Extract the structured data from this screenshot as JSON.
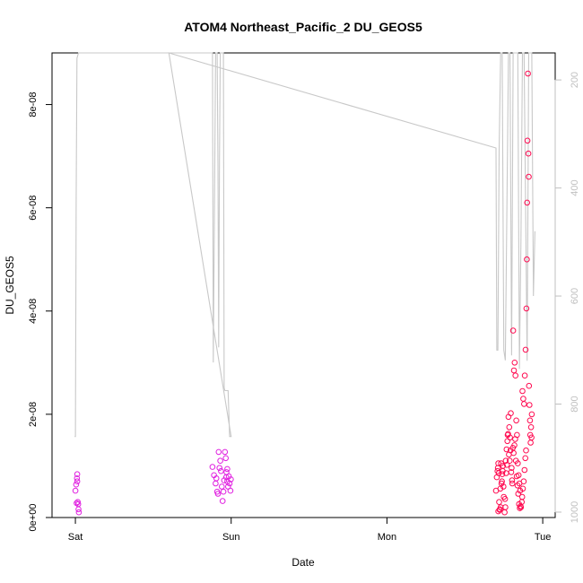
{
  "chart_data": {
    "type": "scatter",
    "title": "ATOM4 Northeast_Pacific_2 DU_GEOS5",
    "xlabel": "Date",
    "ylabel": "DU_GEOS5",
    "x_ticks": [
      {
        "label": "Sat",
        "value": 0
      },
      {
        "label": "Sun",
        "value": 1
      },
      {
        "label": "Mon",
        "value": 2
      },
      {
        "label": "Tue",
        "value": 3
      }
    ],
    "xlim": [
      -0.15,
      3.08
    ],
    "ylim": [
      0,
      9e-08
    ],
    "y_ticks": [
      {
        "label": "0e+00",
        "value": 0
      },
      {
        "label": "2e-08",
        "value": 2e-08
      },
      {
        "label": "4e-08",
        "value": 4e-08
      },
      {
        "label": "6e-08",
        "value": 6e-08
      },
      {
        "label": "8e-08",
        "value": 8e-08
      }
    ],
    "y2_ticks": [
      {
        "label": "200",
        "value": 200
      },
      {
        "label": "400",
        "value": 400
      },
      {
        "label": "600",
        "value": 600
      },
      {
        "label": "800",
        "value": 800
      },
      {
        "label": "1000",
        "value": 1000
      }
    ],
    "y2_lim": [
      1010,
      150
    ],
    "grid": false,
    "colors": {
      "points_magenta": "#e020e0",
      "points_red": "#ff0a50",
      "pressure_line": "#c8c8c8",
      "axis": "#000000"
    },
    "series": [
      {
        "kind": "points",
        "values": [
          [
            0.0,
            5.2e-09
          ],
          [
            0.005,
            6.4e-09
          ],
          [
            0.01,
            7.6e-09
          ],
          [
            0.012,
            8.4e-09
          ],
          [
            0.015,
            3e-09
          ],
          [
            0.018,
            2.6e-09
          ],
          [
            0.02,
            1.6e-09
          ],
          [
            0.022,
            1e-09
          ],
          [
            0.012,
            7e-09
          ],
          [
            0.008,
            2.8e-09
          ],
          [
            0.88,
            9.8e-09
          ],
          [
            0.89,
            8.2e-09
          ],
          [
            0.9,
            6.6e-09
          ],
          [
            0.91,
            5e-09
          ],
          [
            0.92,
            1.27e-08
          ],
          [
            0.93,
            1.1e-08
          ],
          [
            0.935,
            9e-09
          ],
          [
            0.94,
            6e-09
          ],
          [
            0.945,
            3.2e-09
          ],
          [
            0.95,
            5e-09
          ],
          [
            0.955,
            7.2e-09
          ],
          [
            0.96,
            1.27e-08
          ],
          [
            0.965,
            1.15e-08
          ],
          [
            0.97,
            8.8e-09
          ],
          [
            0.975,
            7e-09
          ],
          [
            0.98,
            6e-09
          ],
          [
            0.985,
            8e-09
          ],
          [
            0.99,
            6.6e-09
          ],
          [
            0.995,
            5.2e-09
          ],
          [
            0.998,
            7.4e-09
          ],
          [
            0.905,
            7.6e-09
          ],
          [
            0.915,
            4.6e-09
          ],
          [
            0.925,
            9.6e-09
          ],
          [
            0.975,
            9.4e-09
          ],
          [
            0.968,
            7.8e-09
          ],
          [
            2.7,
            5.2e-09
          ],
          [
            2.705,
            7.8e-09
          ],
          [
            2.71,
            9e-09
          ],
          [
            2.715,
            1.05e-08
          ],
          [
            2.72,
            3e-09
          ],
          [
            2.725,
            1.6e-09
          ],
          [
            2.73,
            2e-09
          ],
          [
            2.735,
            6.6e-09
          ],
          [
            2.74,
            8.4e-09
          ],
          [
            2.745,
            1e-08
          ],
          [
            2.75,
            4e-09
          ],
          [
            2.755,
            1e-09
          ],
          [
            2.76,
            2e-09
          ],
          [
            2.765,
            8.6e-09
          ],
          [
            2.77,
            1.02e-08
          ],
          [
            2.775,
            1.6e-08
          ],
          [
            2.78,
            1.95e-08
          ],
          [
            2.785,
            1.75e-08
          ],
          [
            2.79,
            1.55e-08
          ],
          [
            2.795,
            2.02e-08
          ],
          [
            2.8,
            9.6e-09
          ],
          [
            2.805,
            6.6e-09
          ],
          [
            2.81,
            3.62e-08
          ],
          [
            2.815,
            2.85e-08
          ],
          [
            2.82,
            3e-08
          ],
          [
            2.825,
            2.75e-08
          ],
          [
            2.83,
            1.88e-08
          ],
          [
            2.835,
            1.6e-08
          ],
          [
            2.84,
            1.05e-08
          ],
          [
            2.845,
            8.2e-09
          ],
          [
            2.85,
            6.6e-09
          ],
          [
            2.855,
            5.2e-09
          ],
          [
            2.86,
            2e-09
          ],
          [
            2.865,
            3e-09
          ],
          [
            2.87,
            2.45e-08
          ],
          [
            2.875,
            2.3e-08
          ],
          [
            2.88,
            2.2e-08
          ],
          [
            2.885,
            2.75e-08
          ],
          [
            2.89,
            3.25e-08
          ],
          [
            2.895,
            4.05e-08
          ],
          [
            2.898,
            5e-08
          ],
          [
            2.9,
            6.1e-08
          ],
          [
            2.902,
            7.3e-08
          ],
          [
            2.905,
            8.6e-08
          ],
          [
            2.908,
            7.05e-08
          ],
          [
            2.91,
            6.6e-08
          ],
          [
            2.912,
            2.55e-08
          ],
          [
            2.915,
            2.18e-08
          ],
          [
            2.918,
            1.88e-08
          ],
          [
            2.92,
            1.6e-08
          ],
          [
            2.922,
            1.45e-08
          ],
          [
            2.925,
            1.75e-08
          ],
          [
            2.928,
            1.55e-08
          ],
          [
            2.93,
            2e-08
          ],
          [
            2.893,
            1.3e-08
          ],
          [
            2.888,
            1.15e-08
          ],
          [
            2.883,
            9.2e-09
          ],
          [
            2.878,
            7e-09
          ],
          [
            2.873,
            5.6e-09
          ],
          [
            2.868,
            4e-09
          ],
          [
            2.763,
            1.1e-08
          ],
          [
            2.768,
            1.32e-08
          ],
          [
            2.773,
            1.48e-08
          ],
          [
            2.778,
            1.62e-08
          ],
          [
            2.783,
            1.22e-08
          ],
          [
            2.788,
            1.1e-08
          ],
          [
            2.793,
            1.3e-08
          ],
          [
            2.798,
            8.8e-09
          ],
          [
            2.803,
            7.2e-09
          ],
          [
            2.808,
            1.35e-08
          ],
          [
            2.813,
            1.25e-08
          ],
          [
            2.818,
            1.4e-08
          ],
          [
            2.823,
            1.52e-08
          ],
          [
            2.828,
            1.1e-08
          ],
          [
            2.833,
            8e-09
          ],
          [
            2.838,
            6.2e-09
          ],
          [
            2.843,
            4.6e-09
          ],
          [
            2.848,
            2.6e-09
          ],
          [
            2.853,
            1.8e-09
          ],
          [
            2.858,
            2.2e-09
          ],
          [
            2.712,
            9.6e-09
          ],
          [
            2.718,
            8.6e-09
          ],
          [
            2.728,
            5.6e-09
          ],
          [
            2.738,
            7e-09
          ],
          [
            2.748,
            6e-09
          ],
          [
            2.758,
            3.6e-09
          ],
          [
            2.743,
            9e-09
          ],
          [
            2.733,
            1.05e-08
          ],
          [
            2.723,
            1.5e-09
          ],
          [
            2.715,
            1.2e-09
          ]
        ]
      },
      {
        "kind": "line",
        "name": "pressure",
        "axis": "y2",
        "values": [
          [
            -0.005,
            860
          ],
          [
            0.0,
            860
          ],
          [
            0.005,
            430
          ],
          [
            0.01,
            160
          ],
          [
            0.02,
            150
          ],
          [
            0.6,
            150
          ],
          [
            0.88,
            150
          ],
          [
            0.885,
            723
          ],
          [
            0.895,
            350
          ],
          [
            0.9,
            150
          ],
          [
            0.91,
            150
          ],
          [
            0.915,
            355
          ],
          [
            0.92,
            695
          ],
          [
            0.925,
            350
          ],
          [
            0.93,
            150
          ],
          [
            0.95,
            150
          ],
          [
            0.955,
            770
          ],
          [
            0.96,
            775
          ],
          [
            0.98,
            775
          ],
          [
            0.99,
            860
          ],
          [
            1.0,
            860
          ],
          [
            0.6,
            150
          ],
          [
            2.7,
            326
          ],
          [
            2.705,
            700
          ],
          [
            2.712,
            700
          ],
          [
            2.72,
            330
          ],
          [
            2.73,
            150
          ],
          [
            2.74,
            150
          ],
          [
            2.75,
            700
          ],
          [
            2.76,
            719
          ],
          [
            2.77,
            430
          ],
          [
            2.78,
            150
          ],
          [
            2.79,
            150
          ],
          [
            2.8,
            710
          ],
          [
            2.81,
            150
          ],
          [
            2.84,
            150
          ],
          [
            2.85,
            735
          ],
          [
            2.86,
            500
          ],
          [
            2.87,
            150
          ],
          [
            2.88,
            150
          ],
          [
            2.9,
            720
          ],
          [
            2.91,
            150
          ],
          [
            2.93,
            150
          ],
          [
            2.94,
            600
          ],
          [
            2.95,
            480
          ]
        ]
      }
    ]
  }
}
